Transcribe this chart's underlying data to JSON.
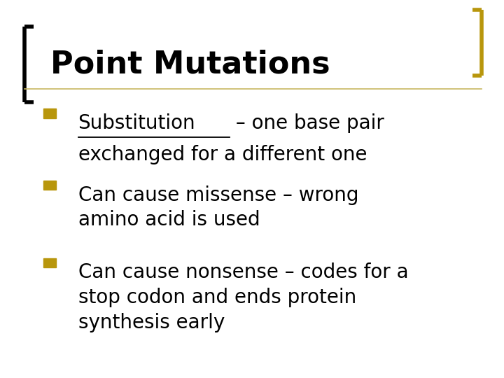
{
  "title": "Point Mutations",
  "title_fontsize": 32,
  "title_color": "#000000",
  "bg_color": "#ffffff",
  "left_bracket_color": "#000000",
  "right_bracket_color": "#b8960c",
  "bullet_color": "#b8960c",
  "text_color": "#000000",
  "bullet_fontsize": 20,
  "separator_color": "#c8b860",
  "bullet1_underline": "Substitution",
  "bullet1_rest": " – one base pair\nexchanged for a different one",
  "bullet2": "Can cause missense – wrong\namino acid is used",
  "bullet3": "Can cause nonsense – codes for a\nstop codon and ends protein\nsynthesis early"
}
